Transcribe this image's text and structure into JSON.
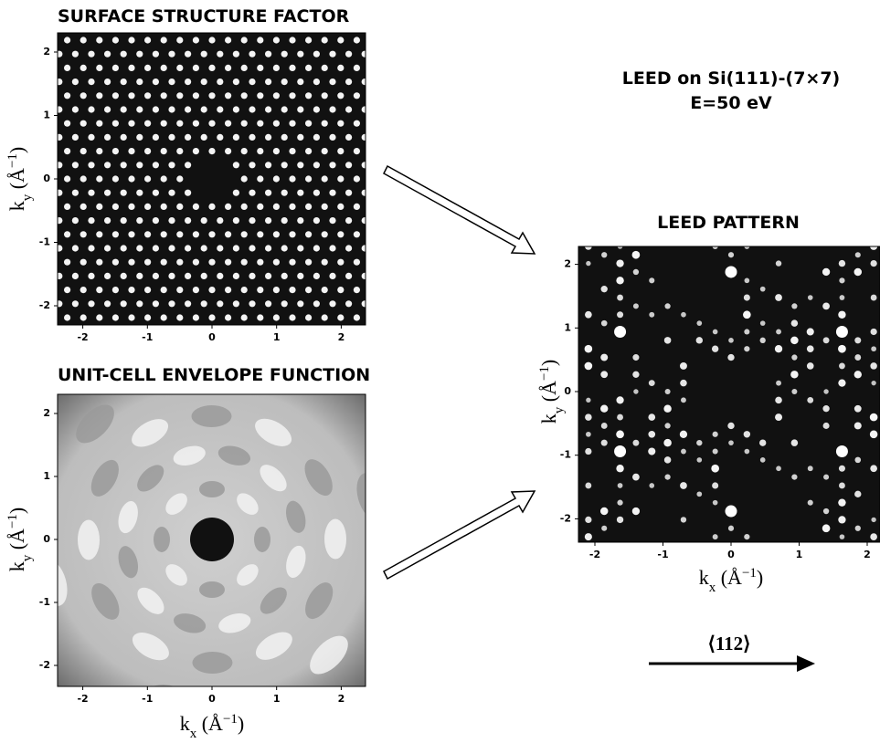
{
  "panels": [
    {
      "title": "SURFACE STRUCTURE FACTOR",
      "xticks": [
        -2,
        -1,
        0,
        1,
        2
      ],
      "yticks": [
        -2,
        -1,
        0,
        1,
        2
      ],
      "ylabel": [
        "k",
        "y",
        " (Å",
        "−1",
        ")"
      ]
    },
    {
      "title": "UNIT-CELL ENVELOPE FUNCTION",
      "xticks": [
        -2,
        -1,
        0,
        1,
        2
      ],
      "yticks": [
        -2,
        -1,
        0,
        1,
        2
      ],
      "xlabel": [
        "k",
        "x",
        " (Å",
        "−1",
        ")"
      ],
      "ylabel": [
        "k",
        "y",
        " (Å",
        "−1",
        ")"
      ]
    },
    {
      "title": "LEED PATTERN",
      "xticks": [
        -2,
        -1,
        0,
        1,
        2
      ],
      "yticks": [
        -2,
        -1,
        0,
        1,
        2
      ],
      "xlabel": [
        "k",
        "x",
        " (Å",
        "−1",
        ")"
      ],
      "ylabel": [
        "k",
        "y",
        " (Å",
        "−1",
        ")"
      ]
    }
  ],
  "heading": [
    "LEED on Si(111)-(7×7)",
    "E=50 eV"
  ],
  "direction": "⟨112⟩"
}
